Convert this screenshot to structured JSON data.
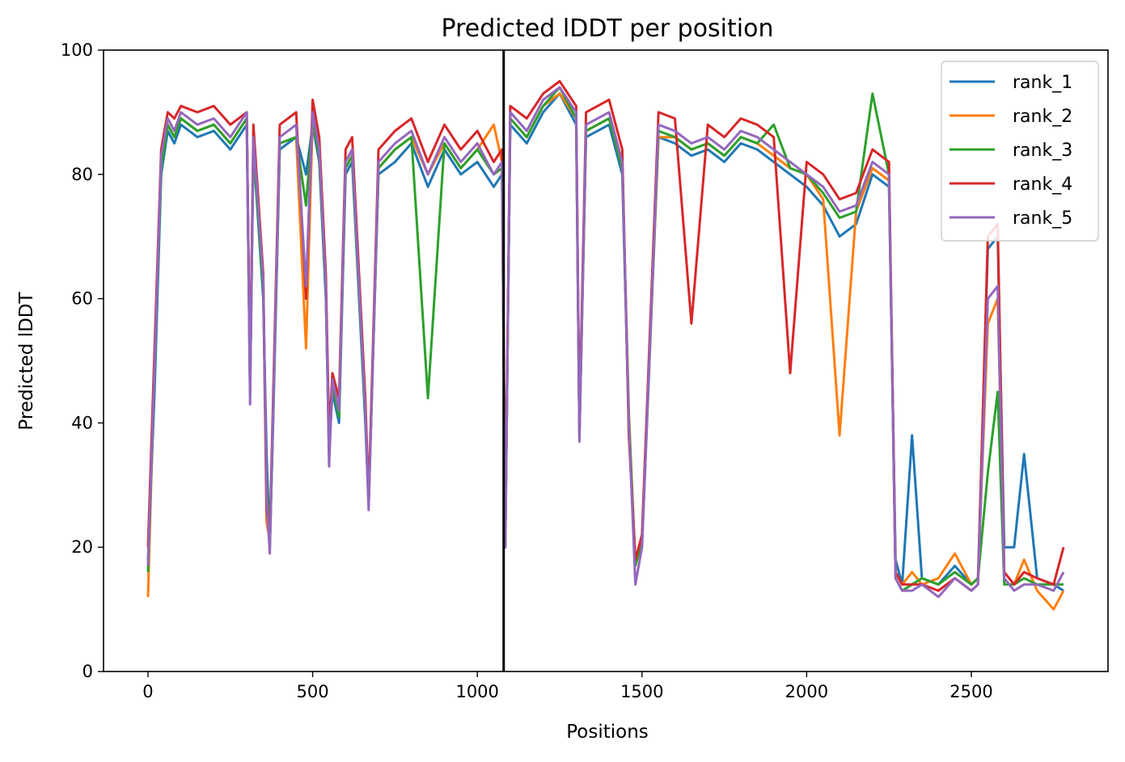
{
  "chart_data": {
    "type": "line",
    "title": "Predicted lDDT per position",
    "xlabel": "Positions",
    "ylabel": "Predicted lDDT",
    "xlim": [
      -135,
      2915
    ],
    "ylim": [
      0,
      100
    ],
    "xticks": [
      0,
      500,
      1000,
      1500,
      2000,
      2500
    ],
    "yticks": [
      0,
      20,
      40,
      60,
      80,
      100
    ],
    "grid": false,
    "legend_position": "top-right",
    "vertical_line_x": 1080,
    "series_colors": [
      "#1f77b4",
      "#ff7f0e",
      "#2ca02c",
      "#d62728",
      "#9467bd"
    ],
    "x": [
      0,
      20,
      40,
      60,
      80,
      100,
      150,
      200,
      250,
      300,
      310,
      320,
      350,
      360,
      370,
      380,
      400,
      450,
      480,
      500,
      520,
      540,
      550,
      560,
      580,
      600,
      620,
      660,
      670,
      700,
      750,
      800,
      850,
      900,
      950,
      1000,
      1050,
      1075,
      1085,
      1100,
      1150,
      1200,
      1250,
      1300,
      1310,
      1330,
      1400,
      1440,
      1460,
      1480,
      1500,
      1550,
      1600,
      1650,
      1700,
      1750,
      1800,
      1850,
      1900,
      1950,
      2000,
      2050,
      2100,
      2150,
      2200,
      2250,
      2270,
      2290,
      2320,
      2350,
      2400,
      2450,
      2500,
      2520,
      2550,
      2580,
      2600,
      2630,
      2660,
      2700,
      2750,
      2780
    ],
    "series": [
      {
        "name": "rank_1",
        "values": [
          18,
          45,
          80,
          87,
          85,
          88,
          86,
          87,
          84,
          88,
          45,
          84,
          60,
          35,
          20,
          40,
          84,
          86,
          80,
          88,
          82,
          60,
          35,
          45,
          40,
          80,
          82,
          40,
          27,
          80,
          82,
          85,
          78,
          84,
          80,
          82,
          78,
          80,
          22,
          88,
          85,
          90,
          93,
          88,
          38,
          86,
          88,
          80,
          40,
          18,
          20,
          86,
          85,
          83,
          84,
          82,
          85,
          84,
          82,
          80,
          78,
          75,
          70,
          72,
          80,
          78,
          18,
          14,
          38,
          15,
          14,
          17,
          14,
          15,
          68,
          70,
          20,
          20,
          35,
          15,
          14,
          13
        ]
      },
      {
        "name": "rank_2",
        "values": [
          12,
          50,
          82,
          88,
          86,
          89,
          87,
          88,
          85,
          89,
          46,
          85,
          62,
          24,
          21,
          42,
          85,
          86,
          52,
          89,
          83,
          62,
          36,
          46,
          42,
          81,
          83,
          42,
          27,
          81,
          84,
          86,
          80,
          85,
          81,
          84,
          88,
          82,
          22,
          89,
          86,
          91,
          93,
          89,
          38,
          87,
          89,
          81,
          42,
          17,
          21,
          86,
          86,
          84,
          85,
          83,
          86,
          85,
          83,
          81,
          80,
          76,
          38,
          74,
          81,
          79,
          16,
          14,
          16,
          14,
          15,
          19,
          14,
          15,
          56,
          60,
          16,
          14,
          18,
          13,
          10,
          13
        ]
      },
      {
        "name": "rank_3",
        "values": [
          16,
          48,
          81,
          88,
          86,
          89,
          87,
          88,
          85,
          89,
          45,
          85,
          61,
          30,
          20,
          41,
          85,
          86,
          75,
          89,
          83,
          61,
          36,
          46,
          41,
          81,
          83,
          41,
          27,
          81,
          84,
          86,
          44,
          85,
          81,
          84,
          80,
          81,
          20,
          89,
          86,
          91,
          94,
          89,
          38,
          87,
          89,
          81,
          41,
          17,
          21,
          87,
          86,
          84,
          85,
          83,
          86,
          85,
          88,
          81,
          80,
          77,
          73,
          74,
          93,
          80,
          15,
          13,
          14,
          15,
          14,
          16,
          14,
          15,
          32,
          45,
          14,
          14,
          15,
          14,
          14,
          14
        ]
      },
      {
        "name": "rank_4",
        "values": [
          20,
          52,
          84,
          90,
          89,
          91,
          90,
          91,
          88,
          90,
          46,
          88,
          64,
          26,
          22,
          44,
          88,
          90,
          60,
          92,
          86,
          64,
          38,
          48,
          44,
          84,
          86,
          44,
          28,
          84,
          87,
          89,
          82,
          88,
          84,
          87,
          82,
          84,
          22,
          91,
          89,
          93,
          95,
          91,
          40,
          90,
          92,
          84,
          38,
          18,
          22,
          90,
          89,
          56,
          88,
          86,
          89,
          88,
          86,
          48,
          82,
          80,
          76,
          77,
          84,
          82,
          16,
          14,
          14,
          14,
          13,
          15,
          13,
          14,
          70,
          72,
          16,
          14,
          16,
          15,
          14,
          20
        ]
      },
      {
        "name": "rank_5",
        "values": [
          17,
          49,
          83,
          89,
          87,
          90,
          88,
          89,
          86,
          90,
          43,
          86,
          63,
          28,
          19,
          42,
          86,
          88,
          62,
          90,
          84,
          62,
          33,
          47,
          42,
          82,
          84,
          42,
          26,
          82,
          85,
          87,
          80,
          86,
          82,
          85,
          80,
          82,
          20,
          90,
          87,
          92,
          94,
          90,
          37,
          88,
          90,
          82,
          40,
          14,
          20,
          88,
          87,
          85,
          86,
          84,
          87,
          86,
          84,
          82,
          80,
          78,
          74,
          75,
          82,
          80,
          15,
          13,
          13,
          14,
          12,
          15,
          13,
          14,
          60,
          62,
          15,
          13,
          14,
          14,
          13,
          16
        ]
      }
    ]
  }
}
